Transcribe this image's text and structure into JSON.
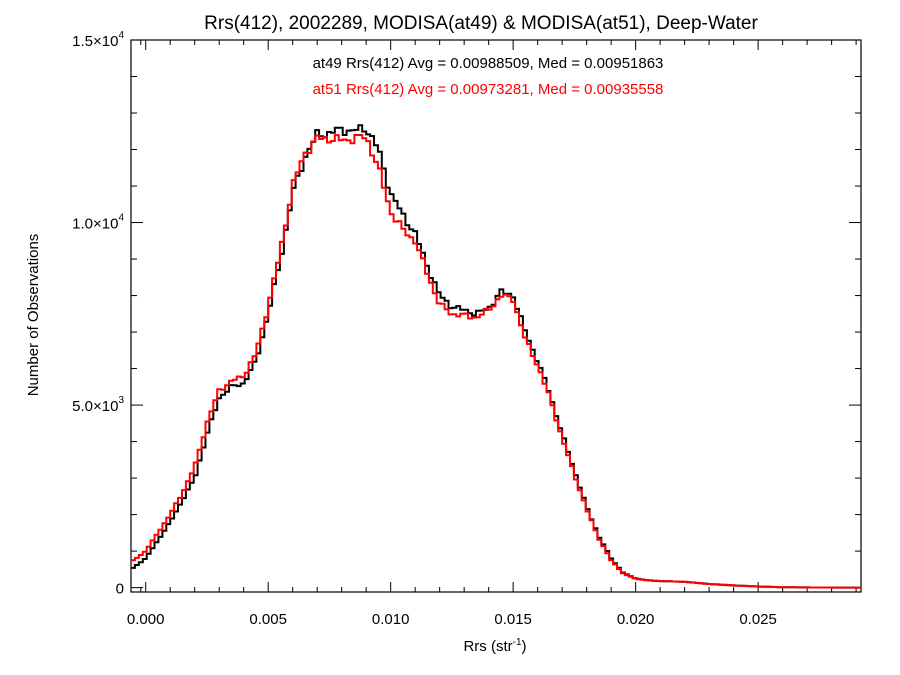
{
  "chart_data": {
    "type": "histogram-step",
    "title": "Rrs(412), 2002289, MODISA(at49) & MODISA(at51), Deep-Water",
    "xlabel": "Rrs (str",
    "xlabel_sup": "-1",
    "xlabel_end": ")",
    "ylabel": "Number of Observations",
    "xlim": [
      -0.0006,
      0.0292
    ],
    "ylim": [
      -120,
      15000
    ],
    "x_ticks": [
      {
        "v": 0.0,
        "label": "0.000"
      },
      {
        "v": 0.005,
        "label": "0.005"
      },
      {
        "v": 0.01,
        "label": "0.010"
      },
      {
        "v": 0.015,
        "label": "0.015"
      },
      {
        "v": 0.02,
        "label": "0.020"
      },
      {
        "v": 0.025,
        "label": "0.025"
      }
    ],
    "y_ticks": [
      {
        "v": 0,
        "mant": "0",
        "exp": ""
      },
      {
        "v": 5000,
        "mant": "5.0×10",
        "exp": "3"
      },
      {
        "v": 10000,
        "mant": "1.0×10",
        "exp": "4"
      },
      {
        "v": 15000,
        "mant": "1.5×10",
        "exp": "4"
      }
    ],
    "annotations": [
      {
        "text": "at49 Rrs(412) Avg = 0.00988509, Med = 0.00951863",
        "color": "#000000"
      },
      {
        "text": "at51 Rrs(412) Avg = 0.00973281, Med = 0.00935558",
        "color": "#ff0000"
      }
    ],
    "series": [
      {
        "name": "at49",
        "color": "#000000",
        "x": [
          -0.0006,
          0.0,
          0.0005,
          0.001,
          0.0015,
          0.002,
          0.0025,
          0.003,
          0.0035,
          0.004,
          0.0045,
          0.005,
          0.0055,
          0.006,
          0.0065,
          0.007,
          0.0075,
          0.008,
          0.0085,
          0.009,
          0.0095,
          0.01,
          0.0105,
          0.011,
          0.0115,
          0.012,
          0.0125,
          0.013,
          0.0135,
          0.014,
          0.0145,
          0.015,
          0.0155,
          0.016,
          0.0165,
          0.017,
          0.0175,
          0.018,
          0.0185,
          0.019,
          0.0195,
          0.02,
          0.0205,
          0.021,
          0.0215,
          0.022,
          0.0225,
          0.023,
          0.024,
          0.025,
          0.026,
          0.027,
          0.028,
          0.0292
        ],
        "y": [
          500,
          800,
          1300,
          1800,
          2400,
          3000,
          4200,
          5200,
          5500,
          5600,
          6200,
          7500,
          9000,
          10800,
          11800,
          12400,
          12450,
          12550,
          12500,
          12600,
          12000,
          10800,
          10200,
          9700,
          8800,
          8000,
          7700,
          7600,
          7500,
          7650,
          8100,
          8000,
          7000,
          6200,
          5300,
          4200,
          3200,
          2200,
          1400,
          800,
          400,
          250,
          200,
          180,
          170,
          160,
          130,
          100,
          60,
          30,
          10,
          5,
          2,
          0
        ]
      },
      {
        "name": "at51",
        "color": "#ff0000",
        "x": [
          -0.0006,
          0.0,
          0.0005,
          0.001,
          0.0015,
          0.002,
          0.0025,
          0.003,
          0.0035,
          0.004,
          0.0045,
          0.005,
          0.0055,
          0.006,
          0.0065,
          0.007,
          0.0075,
          0.008,
          0.0085,
          0.009,
          0.0095,
          0.01,
          0.0105,
          0.011,
          0.0115,
          0.012,
          0.0125,
          0.013,
          0.0135,
          0.014,
          0.0145,
          0.015,
          0.0155,
          0.016,
          0.0165,
          0.017,
          0.0175,
          0.018,
          0.0185,
          0.019,
          0.0195,
          0.02,
          0.0205,
          0.021,
          0.0215,
          0.022,
          0.0225,
          0.023,
          0.024,
          0.025,
          0.026,
          0.027,
          0.028,
          0.0292
        ],
        "y": [
          700,
          1000,
          1500,
          2000,
          2600,
          3300,
          4500,
          5400,
          5650,
          5800,
          6400,
          7700,
          9200,
          11000,
          11900,
          12300,
          12300,
          12250,
          12300,
          12350,
          11500,
          10300,
          9800,
          9500,
          8600,
          7750,
          7500,
          7450,
          7400,
          7600,
          8000,
          7900,
          6800,
          6100,
          5200,
          4100,
          3100,
          2150,
          1350,
          750,
          380,
          240,
          200,
          180,
          170,
          160,
          130,
          100,
          60,
          30,
          10,
          5,
          2,
          0
        ]
      }
    ]
  }
}
